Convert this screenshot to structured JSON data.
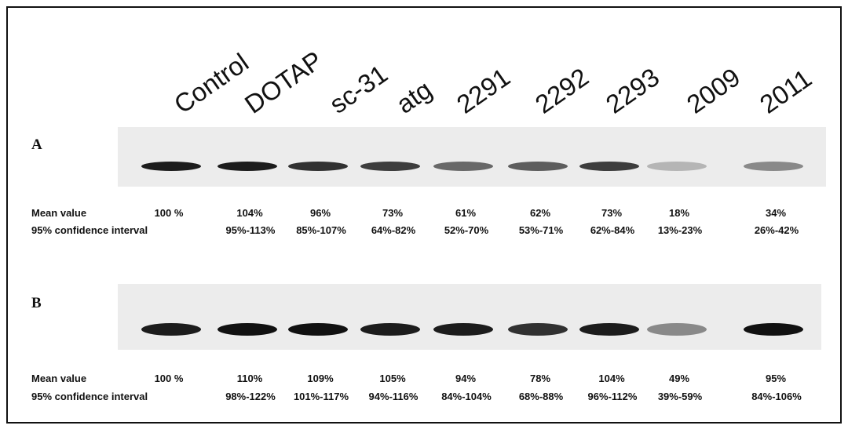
{
  "lanes": [
    "Control",
    "DOTAP",
    "sc-31",
    "atg",
    "2291",
    "2292",
    "2293",
    "2009",
    "2011"
  ],
  "panels": [
    {
      "label": "A",
      "mean_label": "Mean value",
      "means": [
        "100 %",
        "104%",
        "96%",
        "73%",
        "61%",
        "62%",
        "73%",
        "18%",
        "34%"
      ],
      "ci_label": "95% confidence interval",
      "cis": [
        "95%-113%",
        "85%-107%",
        "64%-82%",
        "52%-70%",
        "53%-71%",
        "62%-84%",
        "13%-23%",
        "26%-42%"
      ]
    },
    {
      "label": "B",
      "mean_label": "Mean value",
      "means": [
        "100 %",
        "110%",
        "109%",
        "105%",
        "94%",
        "78%",
        "104%",
        "49%",
        "95%"
      ],
      "ci_label": "95% confidence interval",
      "cis": [
        "98%-122%",
        "101%-117%",
        "94%-116%",
        "84%-104%",
        "68%-88%",
        "96%-112%",
        "39%-59%",
        "84%-106%"
      ]
    }
  ]
}
